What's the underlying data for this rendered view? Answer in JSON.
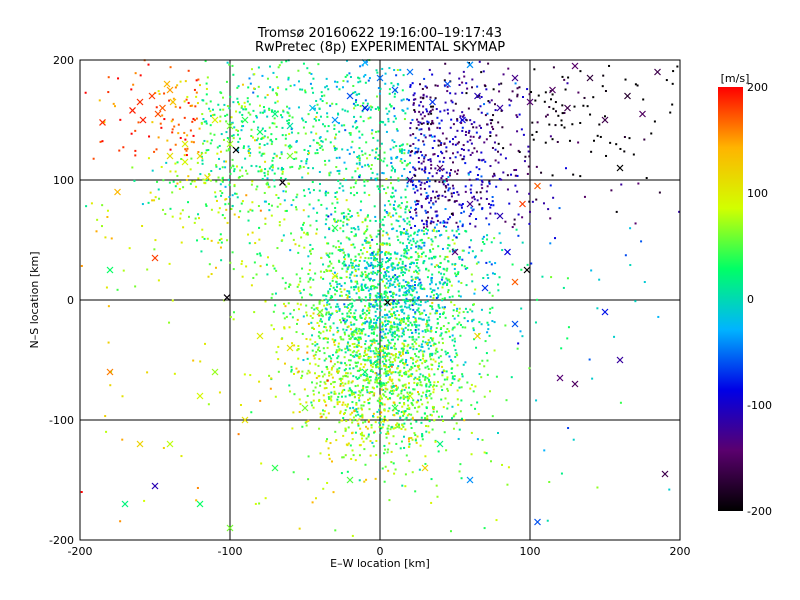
{
  "chart_data": {
    "type": "scatter",
    "title": "Tromsø 20160622 19:16:00–19:17:43",
    "subtitle": "RwPretec (8p) EXPERIMENTAL SKYMAP",
    "xlabel": "E–W location [km]",
    "ylabel": "N–S location [km]",
    "xlim": [
      -200,
      200
    ],
    "ylim": [
      -200,
      200
    ],
    "x_ticks": [
      "-200",
      "-100",
      "0",
      "100",
      "200"
    ],
    "y_ticks": [
      "-200",
      "-100",
      "0",
      "100",
      "200"
    ],
    "grid": true,
    "marker_styles": [
      "dot",
      "cross"
    ],
    "colorbar": {
      "label": "[m/s]",
      "range": [
        -200,
        200
      ],
      "ticks": [
        "200",
        "100",
        "0",
        "-100",
        "-200"
      ],
      "colors": [
        "#000000",
        "#5a006e",
        "#0000e6",
        "#00b4ff",
        "#00ff66",
        "#d2ff00",
        "#ffb400",
        "#ff0000"
      ]
    },
    "points": [
      [
        -160,
        165,
        185,
        "cross"
      ],
      [
        -152,
        170,
        180,
        "cross"
      ],
      [
        -145,
        160,
        170,
        "cross"
      ],
      [
        -158,
        150,
        190,
        "cross"
      ],
      [
        -140,
        175,
        150,
        "cross"
      ],
      [
        -148,
        155,
        175,
        "cross"
      ],
      [
        -165,
        158,
        190,
        "cross"
      ],
      [
        -138,
        165,
        130,
        "cross"
      ],
      [
        -142,
        180,
        140,
        "cross"
      ],
      [
        -185,
        148,
        185,
        "cross"
      ],
      [
        -130,
        130,
        100,
        "cross"
      ],
      [
        -120,
        120,
        110,
        "cross"
      ],
      [
        -110,
        150,
        95,
        "cross"
      ],
      [
        -100,
        145,
        60,
        "cross"
      ],
      [
        -90,
        150,
        40,
        "cross"
      ],
      [
        -80,
        140,
        30,
        "cross"
      ],
      [
        -70,
        155,
        20,
        "cross"
      ],
      [
        -60,
        145,
        5,
        "cross"
      ],
      [
        -45,
        160,
        -20,
        "cross"
      ],
      [
        -30,
        150,
        -40,
        "cross"
      ],
      [
        -20,
        170,
        -60,
        "cross"
      ],
      [
        -10,
        160,
        -80,
        "cross"
      ],
      [
        0,
        185,
        -50,
        "cross"
      ],
      [
        10,
        175,
        -60,
        "cross"
      ],
      [
        20,
        190,
        -50,
        "cross"
      ],
      [
        35,
        165,
        -70,
        "cross"
      ],
      [
        45,
        180,
        -60,
        "cross"
      ],
      [
        55,
        150,
        -90,
        "cross"
      ],
      [
        65,
        170,
        -110,
        "cross"
      ],
      [
        80,
        160,
        -120,
        "cross"
      ],
      [
        90,
        185,
        -130,
        "cross"
      ],
      [
        100,
        165,
        -140,
        "cross"
      ],
      [
        115,
        175,
        -150,
        "cross"
      ],
      [
        125,
        160,
        -160,
        "cross"
      ],
      [
        140,
        185,
        -170,
        "cross"
      ],
      [
        150,
        150,
        -160,
        "cross"
      ],
      [
        165,
        170,
        -175,
        "cross"
      ],
      [
        175,
        155,
        -150,
        "cross"
      ],
      [
        185,
        190,
        -160,
        "cross"
      ],
      [
        130,
        195,
        -145,
        "cross"
      ],
      [
        160,
        110,
        -200,
        "cross"
      ],
      [
        105,
        95,
        170,
        "cross"
      ],
      [
        95,
        80,
        180,
        "cross"
      ],
      [
        -96,
        125,
        -200,
        "cross"
      ],
      [
        -65,
        98,
        -195,
        "cross"
      ],
      [
        98,
        25,
        -200,
        "cross"
      ],
      [
        -102,
        2,
        -195,
        "cross"
      ],
      [
        5,
        -2,
        -200,
        "cross"
      ],
      [
        -170,
        -170,
        20,
        "cross"
      ],
      [
        -150,
        -155,
        -110,
        "cross"
      ],
      [
        -180,
        -60,
        160,
        "cross"
      ],
      [
        -150,
        35,
        180,
        "cross"
      ],
      [
        -175,
        90,
        140,
        "cross"
      ],
      [
        120,
        -65,
        -140,
        "cross"
      ],
      [
        130,
        -70,
        -150,
        "cross"
      ],
      [
        160,
        -50,
        -120,
        "cross"
      ],
      [
        190,
        -145,
        -160,
        "cross"
      ],
      [
        105,
        -185,
        -60,
        "cross"
      ],
      [
        60,
        -150,
        -40,
        "cross"
      ],
      [
        40,
        -120,
        20,
        "cross"
      ],
      [
        -140,
        120,
        110,
        "cross"
      ],
      [
        -100,
        130,
        70,
        "cross"
      ],
      [
        -60,
        120,
        60,
        "cross"
      ],
      [
        -140,
        -120,
        80,
        "cross"
      ],
      [
        -120,
        -80,
        90,
        "cross"
      ],
      [
        -80,
        -30,
        100,
        "cross"
      ],
      [
        -60,
        -40,
        110,
        "cross"
      ],
      [
        -30,
        20,
        90,
        "cross"
      ],
      [
        -40,
        -10,
        60,
        "cross"
      ],
      [
        20,
        -80,
        80,
        "cross"
      ],
      [
        30,
        -140,
        120,
        "cross"
      ],
      [
        -20,
        -150,
        50,
        "cross"
      ],
      [
        -160,
        -120,
        120,
        "cross"
      ],
      [
        -90,
        -100,
        110,
        "cross"
      ],
      [
        -110,
        -60,
        70,
        "cross"
      ],
      [
        20,
        100,
        -120,
        "cross"
      ],
      [
        40,
        110,
        -150,
        "cross"
      ],
      [
        60,
        80,
        -130,
        "cross"
      ],
      [
        80,
        70,
        -110,
        "cross"
      ],
      [
        50,
        40,
        -140,
        "cross"
      ],
      [
        70,
        10,
        -70,
        "cross"
      ],
      [
        90,
        -20,
        -60,
        "cross"
      ],
      [
        65,
        -30,
        120,
        "cross"
      ],
      [
        -30,
        60,
        40,
        "cross"
      ],
      [
        0,
        30,
        10,
        "cross"
      ],
      [
        20,
        10,
        -20,
        "cross"
      ],
      [
        -10,
        -60,
        30,
        "cross"
      ],
      [
        10,
        -90,
        40,
        "cross"
      ],
      [
        -50,
        -90,
        60,
        "cross"
      ],
      [
        -70,
        -140,
        40,
        "cross"
      ],
      [
        -120,
        -170,
        30,
        "cross"
      ],
      [
        -100,
        -190,
        60,
        "cross"
      ],
      [
        -130,
        115,
        90,
        "cross"
      ],
      [
        -115,
        102,
        110,
        "cross"
      ],
      [
        60,
        196,
        -40,
        "cross"
      ],
      [
        -10,
        198,
        -30,
        "cross"
      ],
      [
        90,
        15,
        170,
        "cross"
      ],
      [
        85,
        40,
        -90,
        "cross"
      ],
      [
        150,
        -10,
        -80,
        "cross"
      ],
      [
        -180,
        25,
        30,
        "cross"
      ]
    ]
  }
}
